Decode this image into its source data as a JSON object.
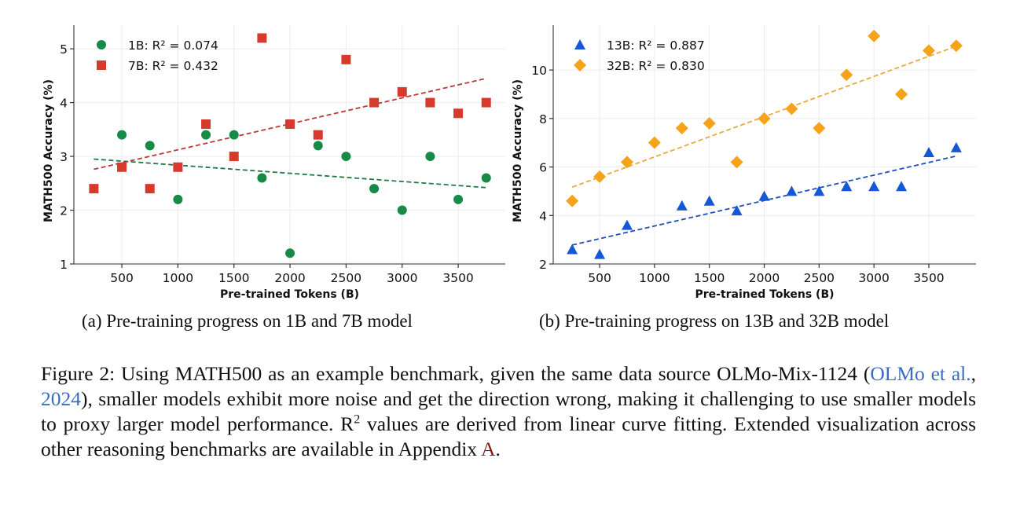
{
  "chart_data": [
    {
      "type": "scatter",
      "xlabel": "Pre-trained Tokens (B)",
      "ylabel": "MATH500 Accuracy (%)",
      "xlim": [
        72,
        3920
      ],
      "ylim": [
        1,
        5.44
      ],
      "xticks": [
        500,
        1000,
        1500,
        2000,
        2500,
        3000,
        3500
      ],
      "yticks": [
        1,
        2,
        3,
        4,
        5
      ],
      "grid": true,
      "legend_position": "top-left",
      "series": [
        {
          "name": "1B",
          "legend": "1B: R² = 0.074",
          "marker": "circle",
          "color": "#178a47",
          "x": [
            500,
            750,
            1000,
            1250,
            1500,
            1750,
            2000,
            2250,
            2500,
            2750,
            3000,
            3250,
            3500,
            3750
          ],
          "y": [
            3.4,
            3.2,
            2.2,
            3.4,
            3.4,
            2.6,
            1.2,
            3.2,
            3.0,
            2.4,
            2.0,
            3.0,
            2.2,
            2.6
          ],
          "fit": {
            "x": [
              250,
              3750
            ],
            "y": [
              2.95,
              2.42
            ]
          }
        },
        {
          "name": "7B",
          "legend": "7B: R² = 0.432",
          "marker": "square",
          "color": "#d63a2c",
          "x": [
            250,
            500,
            750,
            1000,
            1250,
            1500,
            1750,
            2000,
            2250,
            2500,
            2750,
            3000,
            3250,
            3500,
            3750
          ],
          "y": [
            2.4,
            2.8,
            2.4,
            2.8,
            3.6,
            3.0,
            5.2,
            3.6,
            3.4,
            4.8,
            4.0,
            4.2,
            4.0,
            3.8,
            4.0
          ],
          "fit": {
            "x": [
              250,
              3750
            ],
            "y": [
              2.76,
              4.45
            ]
          }
        }
      ]
    },
    {
      "type": "scatter",
      "xlabel": "Pre-trained Tokens (B)",
      "ylabel": "MATH500 Accuracy (%)",
      "xlim": [
        77,
        3930
      ],
      "ylim": [
        2,
        11.85
      ],
      "xticks": [
        500,
        1000,
        1500,
        2000,
        2500,
        3000,
        3500
      ],
      "yticks": [
        2,
        4,
        6,
        8,
        10
      ],
      "grid": true,
      "legend_position": "top-left",
      "series": [
        {
          "name": "13B",
          "legend": "13B: R² = 0.887",
          "marker": "triangle",
          "color": "#1558d6",
          "x": [
            250,
            500,
            750,
            1250,
            1500,
            1750,
            2000,
            2250,
            2500,
            2750,
            3000,
            3250,
            3500,
            3750
          ],
          "y": [
            2.6,
            2.4,
            3.6,
            4.4,
            4.6,
            4.2,
            4.8,
            5.0,
            5.0,
            5.2,
            5.2,
            5.2,
            6.6,
            6.8
          ],
          "fit": {
            "x": [
              250,
              3750
            ],
            "y": [
              2.78,
              6.45
            ]
          }
        },
        {
          "name": "32B",
          "legend": "32B: R² = 0.830",
          "marker": "diamond",
          "color": "#f5a31a",
          "x": [
            250,
            500,
            750,
            1000,
            1250,
            1500,
            1750,
            2000,
            2250,
            2500,
            2750,
            3000,
            3250,
            3500,
            3750
          ],
          "y": [
            4.6,
            5.6,
            6.2,
            7.0,
            7.6,
            7.8,
            6.2,
            8.0,
            8.4,
            7.6,
            9.8,
            11.4,
            9.0,
            10.8,
            11.0
          ],
          "fit": {
            "x": [
              250,
              3750
            ],
            "y": [
              5.17,
              10.98
            ]
          }
        }
      ]
    }
  ],
  "fit_line_colors": [
    "#1e7a45",
    "#b83a36",
    "#1f4fb5",
    "#e8a93a"
  ],
  "subcaptions": {
    "a": "(a) Pre-training progress on 1B and 7B model",
    "b": "(b) Pre-training progress on 13B and 32B model"
  },
  "caption": {
    "part1": "Figure 2:  Using MATH500 as an example benchmark, given the same data source OLMo-Mix-1124 (",
    "cite_author": "OLMo et al.",
    "cite_sep": ", ",
    "cite_year": "2024",
    "part2": "), smaller models exhibit more noise and get the direction wrong, making it challenging to use smaller models to proxy larger model performance.  R",
    "sup": "2",
    "part3": " values are derived from linear curve fitting. Extended visualization across other reasoning benchmarks are available in Appendix ",
    "appendix_ref": "A",
    "part4": "."
  }
}
